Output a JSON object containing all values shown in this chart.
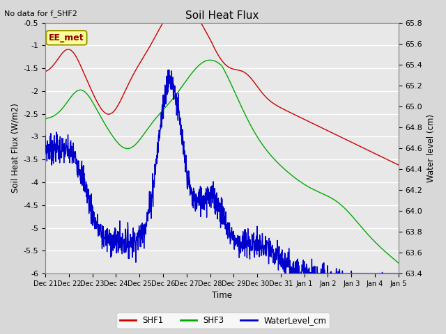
{
  "title": "Soil Heat Flux",
  "no_data_text": "No data for f_SHF2",
  "xlabel": "Time",
  "ylabel_left": "Soil Heat Flux (W/m2)",
  "ylabel_right": "Water level (cm)",
  "annotation_box": "EE_met",
  "ylim_left": [
    -6.0,
    -0.5
  ],
  "ylim_right": [
    63.4,
    65.8
  ],
  "yticks_left": [
    -6.0,
    -5.5,
    -5.0,
    -4.5,
    -4.0,
    -3.5,
    -3.0,
    -2.5,
    -2.0,
    -1.5,
    -1.0,
    -0.5
  ],
  "yticks_right": [
    63.4,
    63.6,
    63.8,
    64.0,
    64.2,
    64.4,
    64.6,
    64.8,
    65.0,
    65.2,
    65.4,
    65.6,
    65.8
  ],
  "bg_color": "#d8d8d8",
  "plot_bg_color": "#e8e8e8",
  "grid_color": "#ffffff",
  "line_colors": {
    "SHF1": "#cc0000",
    "SHF3": "#00aa00",
    "WaterLevel": "#0000cc"
  },
  "legend_labels": [
    "SHF1",
    "SHF3",
    "WaterLevel_cm"
  ],
  "x_tick_labels": [
    "Dec 21",
    "Dec 22",
    "Dec 23",
    "Dec 24",
    "Dec 25",
    "Dec 26",
    "Dec 27",
    "Dec 28",
    "Dec 29",
    "Dec 30",
    "Dec 31",
    "Jan 1",
    "Jan 2",
    "Jan 3",
    "Jan 4",
    "Jan 5"
  ],
  "n_days": 15
}
